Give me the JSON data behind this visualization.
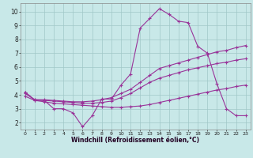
{
  "bg_color": "#c8e8e8",
  "line_color": "#993399",
  "grid_color": "#a0c8c8",
  "xlabel": "Windchill (Refroidissement éolien,°C)",
  "xlim_min": -0.5,
  "xlim_max": 23.5,
  "ylim_min": 1.5,
  "ylim_max": 10.6,
  "yticks": [
    2,
    3,
    4,
    5,
    6,
    7,
    8,
    9,
    10
  ],
  "xticks": [
    0,
    1,
    2,
    3,
    4,
    5,
    6,
    7,
    8,
    9,
    10,
    11,
    12,
    13,
    14,
    15,
    16,
    17,
    18,
    19,
    20,
    21,
    22,
    23
  ],
  "line1_x": [
    0,
    1,
    2,
    3,
    4,
    5,
    6,
    7,
    8,
    9,
    10,
    11,
    12,
    13,
    14,
    15,
    16,
    17,
    18,
    19,
    20,
    21,
    22,
    23
  ],
  "line1_y": [
    4.2,
    3.6,
    3.6,
    3.0,
    3.0,
    2.7,
    1.7,
    2.5,
    3.7,
    3.7,
    4.7,
    5.5,
    8.8,
    9.5,
    10.2,
    9.8,
    9.3,
    9.2,
    7.5,
    7.0,
    4.8,
    3.0,
    2.5,
    2.5
  ],
  "line2_x": [
    0,
    1,
    2,
    3,
    4,
    5,
    6,
    7,
    8,
    9,
    10,
    11,
    12,
    13,
    14,
    15,
    16,
    17,
    18,
    19,
    20,
    21,
    22,
    23
  ],
  "line2_y": [
    4.2,
    3.65,
    3.65,
    3.6,
    3.55,
    3.5,
    3.5,
    3.55,
    3.65,
    3.8,
    4.1,
    4.4,
    4.9,
    5.4,
    5.9,
    6.1,
    6.3,
    6.5,
    6.7,
    6.9,
    7.1,
    7.2,
    7.4,
    7.55
  ],
  "line3_x": [
    0,
    1,
    2,
    3,
    4,
    5,
    6,
    7,
    8,
    9,
    10,
    11,
    12,
    13,
    14,
    15,
    16,
    17,
    18,
    19,
    20,
    21,
    22,
    23
  ],
  "line3_y": [
    4.1,
    3.65,
    3.6,
    3.55,
    3.5,
    3.45,
    3.4,
    3.4,
    3.45,
    3.55,
    3.8,
    4.1,
    4.5,
    4.9,
    5.2,
    5.4,
    5.6,
    5.8,
    5.95,
    6.1,
    6.25,
    6.35,
    6.5,
    6.6
  ],
  "line4_x": [
    0,
    1,
    2,
    3,
    4,
    5,
    6,
    7,
    8,
    9,
    10,
    11,
    12,
    13,
    14,
    15,
    16,
    17,
    18,
    19,
    20,
    21,
    22,
    23
  ],
  "line4_y": [
    3.9,
    3.6,
    3.5,
    3.4,
    3.35,
    3.3,
    3.25,
    3.2,
    3.15,
    3.1,
    3.1,
    3.15,
    3.2,
    3.3,
    3.45,
    3.6,
    3.75,
    3.9,
    4.05,
    4.2,
    4.35,
    4.45,
    4.6,
    4.7
  ]
}
